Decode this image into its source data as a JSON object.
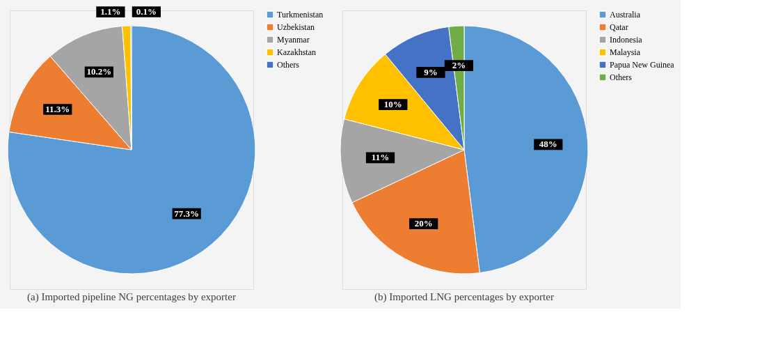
{
  "chart_data": [
    {
      "type": "pie",
      "title": "(a) Imported pipeline NG percentages by exporter",
      "categories": [
        "Turkmenistan",
        "Uzbekistan",
        "Myanmar",
        "Kazakhstan",
        "Others"
      ],
      "values": [
        77.3,
        11.3,
        10.2,
        1.1,
        0.1
      ],
      "colors": [
        "#5b9bd5",
        "#ed7d31",
        "#a5a5a5",
        "#ffc000",
        "#4472c4"
      ],
      "value_labels": [
        "77.3%",
        "11.3%",
        "10.2%",
        "1.1%",
        "0.1%"
      ],
      "legend": "right"
    },
    {
      "type": "pie",
      "title": "(b) Imported LNG percentages by exporter",
      "categories": [
        "Australia",
        "Qatar",
        "Indonesia",
        "Malaysia",
        "Papua New Guinea",
        "Others"
      ],
      "values": [
        48,
        20,
        11,
        10,
        9,
        2
      ],
      "colors": [
        "#5b9bd5",
        "#ed7d31",
        "#a5a5a5",
        "#ffc000",
        "#4472c4",
        "#70ad47"
      ],
      "value_labels": [
        "48%",
        "20%",
        "11%",
        "10%",
        "9%",
        "2%"
      ],
      "legend": "right"
    }
  ]
}
